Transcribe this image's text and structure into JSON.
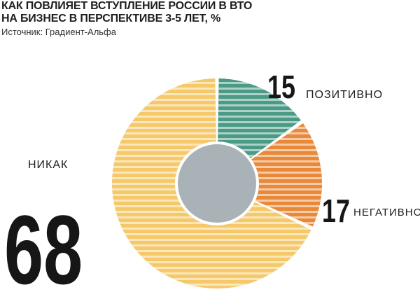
{
  "header": {
    "title_line1": "КАК ПОВЛИЯЕТ ВСТУПЛЕНИЕ РОССИИ В ВТО",
    "title_line2": "НА БИЗНЕС В ПЕРСПЕКТИВЕ 3-5 ЛЕТ, %",
    "source": "Источник: Градиент-Альфа"
  },
  "chart_data": {
    "type": "pie",
    "title": "КАК ПОВЛИЯЕТ ВСТУПЛЕНИЕ РОССИИ В ВТО НА БИЗНЕС В ПЕРСПЕКТИВЕ 3-5 ЛЕТ, %",
    "series": [
      {
        "name": "ПОЗИТИВНО",
        "value": 15,
        "label": "15",
        "color": "#4a9a86"
      },
      {
        "name": "НЕГАТИВНО",
        "value": 17,
        "label": "17",
        "color": "#e8893a"
      },
      {
        "name": "НИКАК",
        "value": 68,
        "label": "68",
        "color": "#f5c96a"
      }
    ],
    "center_color": "#a9b2b7"
  }
}
